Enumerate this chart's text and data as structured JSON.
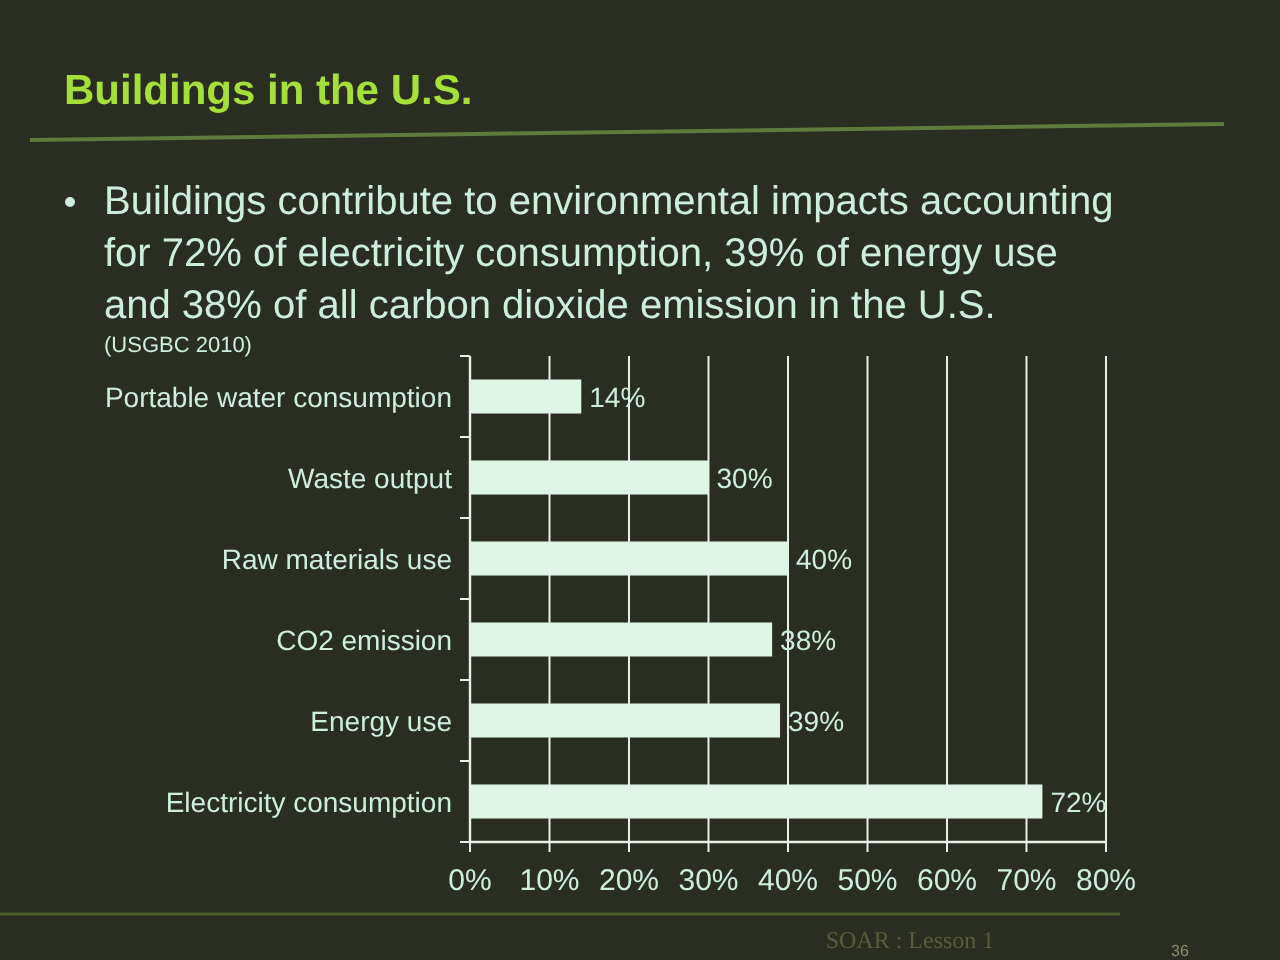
{
  "chart_data": {
    "type": "bar",
    "orientation": "horizontal",
    "title": "Buildings in the U.S.",
    "subtitle": "Buildings contribute to environmental impacts accounting for 72% of electricity consumption, 39% of energy use and 38% of all carbon dioxide emission in the U.S.",
    "annotations": [
      "(USGBC 2010)",
      "SOAR : Lesson 1",
      "36"
    ],
    "categories": [
      "Portable water consumption",
      "Waste output",
      "Raw materials use",
      "CO2 emission",
      "Energy use",
      "Electricity consumption"
    ],
    "values": [
      14,
      30,
      40,
      38,
      39,
      72
    ],
    "color": "#dff5e6",
    "value_labels": [
      "14%",
      "30%",
      "40%",
      "38%",
      "39%",
      "72%"
    ],
    "xlim": [
      0,
      80
    ],
    "xticks": [
      {
        "value": 0,
        "label": "0%"
      },
      {
        "value": 10,
        "label": "10%"
      },
      {
        "value": 20,
        "label": "20%"
      },
      {
        "value": 30,
        "label": "30%"
      },
      {
        "value": 40,
        "label": "40%"
      },
      {
        "value": 50,
        "label": "50%"
      },
      {
        "value": 60,
        "label": "60%"
      },
      {
        "value": 70,
        "label": "70%"
      },
      {
        "value": 80,
        "label": "80%"
      }
    ],
    "grid": "x"
  }
}
